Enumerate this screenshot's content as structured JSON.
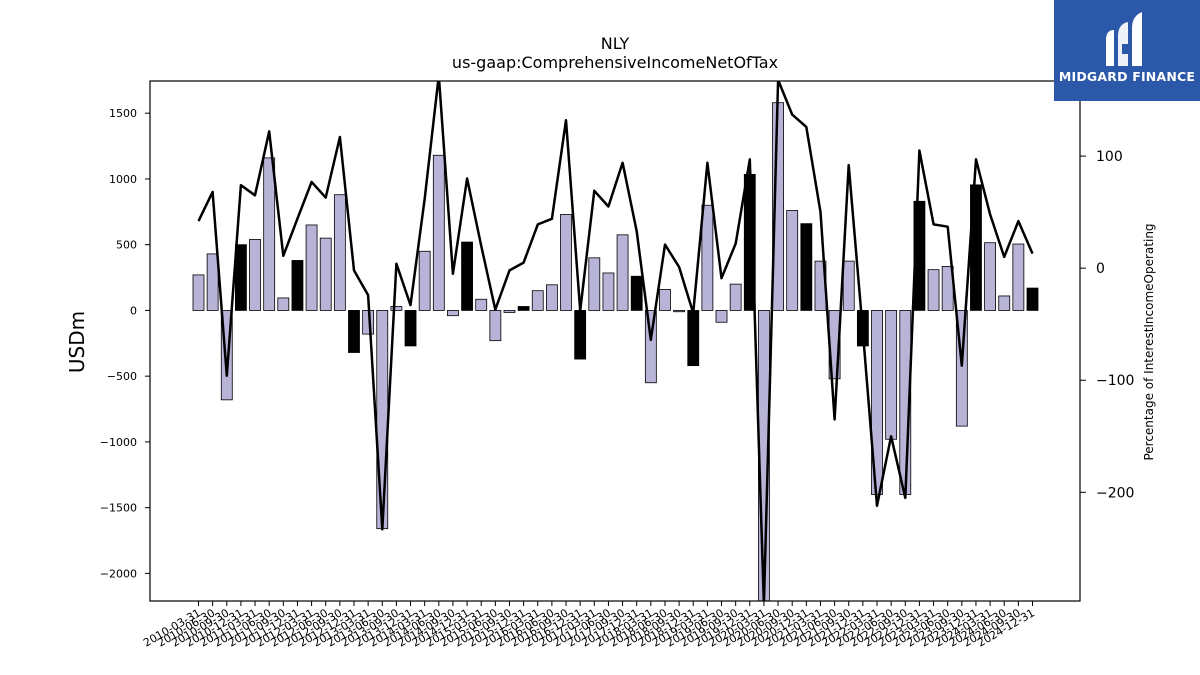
{
  "brand": {
    "name": "MIDGARD FINANCE",
    "logo_color": "#2b58a8"
  },
  "chart_data": {
    "type": "bar",
    "title": "NLY",
    "subtitle": "us-gaap:ComprehensiveIncomeNetOfTax",
    "ylabel": "USDm",
    "y2label": "Percentage of InterestIncomeOperating",
    "ylim": [
      -2210,
      1745
    ],
    "y2lim": [
      -297,
      167
    ],
    "yticks": [
      -2000,
      -1500,
      -1000,
      -500,
      0,
      500,
      1000,
      1500
    ],
    "y2ticks": [
      -200,
      -100,
      0,
      100
    ],
    "bar_color_default": "#b8b4d8",
    "bar_color_q4": "#000000",
    "line_color": "#000000",
    "categories": [
      "2010-03-31",
      "2010-06-30",
      "2010-09-30",
      "2010-12-31",
      "2011-03-31",
      "2011-06-30",
      "2011-09-30",
      "2011-12-31",
      "2012-03-31",
      "2012-06-30",
      "2012-09-30",
      "2012-12-31",
      "2013-03-31",
      "2013-06-30",
      "2013-09-30",
      "2013-12-31",
      "2014-03-31",
      "2014-06-30",
      "2014-09-30",
      "2014-12-31",
      "2015-03-31",
      "2015-06-30",
      "2015-09-30",
      "2015-12-31",
      "2016-03-31",
      "2016-06-30",
      "2016-09-30",
      "2016-12-31",
      "2017-03-31",
      "2017-06-30",
      "2017-09-30",
      "2017-12-31",
      "2018-03-31",
      "2018-06-30",
      "2018-09-30",
      "2018-12-31",
      "2019-03-31",
      "2019-06-30",
      "2019-09-30",
      "2019-12-31",
      "2020-03-31",
      "2020-06-30",
      "2020-09-30",
      "2020-12-31",
      "2021-03-31",
      "2021-06-30",
      "2021-09-30",
      "2021-12-31",
      "2022-03-31",
      "2022-06-30",
      "2022-09-30",
      "2022-12-31",
      "2023-03-31",
      "2023-06-30",
      "2023-09-30",
      "2023-12-31",
      "2024-03-31",
      "2024-06-30",
      "2024-09-30",
      "2024-12-31"
    ],
    "series": [
      {
        "kind": "bar",
        "axis": "left",
        "values": [
          270,
          430,
          -680,
          500,
          540,
          1160,
          95,
          380,
          650,
          550,
          880,
          -320,
          -180,
          -1660,
          30,
          -270,
          450,
          1180,
          -40,
          520,
          85,
          -230,
          -15,
          30,
          150,
          195,
          730,
          -370,
          400,
          285,
          575,
          260,
          -550,
          160,
          -10,
          -420,
          800,
          -90,
          200,
          1035,
          -2250,
          1580,
          760,
          660,
          375,
          -520,
          375,
          -270,
          -1400,
          -980,
          -1400,
          830,
          310,
          335,
          -880,
          955,
          515,
          110,
          505,
          170
        ]
      },
      {
        "kind": "line",
        "axis": "right",
        "values": [
          42,
          68,
          -96,
          74,
          65,
          122,
          11,
          44,
          77,
          63,
          117,
          -2,
          -24,
          -233,
          4,
          -33,
          62,
          172,
          -5,
          80,
          20,
          -37,
          -2,
          5,
          39,
          44,
          132,
          -38,
          69,
          55,
          94,
          33,
          -64,
          21,
          1,
          -40,
          94,
          -9,
          22,
          97,
          -300,
          168,
          137,
          126,
          50,
          -135,
          92,
          -57,
          -212,
          -150,
          -205,
          105,
          39,
          37,
          -87,
          97,
          48,
          10,
          42,
          13
        ]
      }
    ]
  }
}
